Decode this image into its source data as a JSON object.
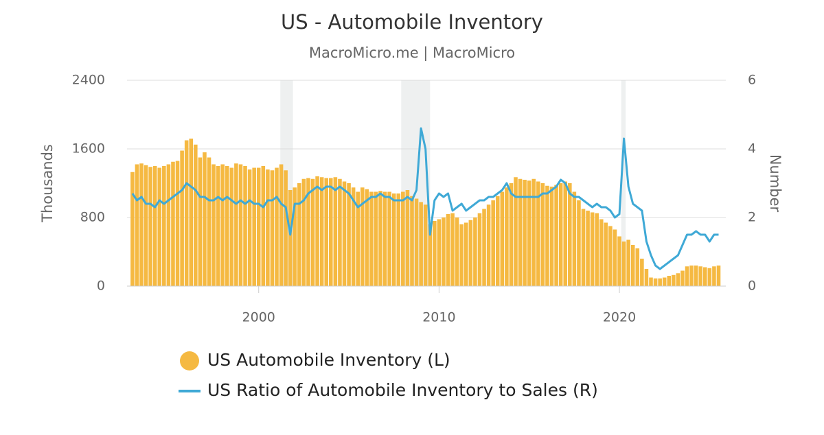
{
  "chart_data": {
    "type": "bar-line",
    "title": "US - Automobile Inventory",
    "subtitle": "MacroMicro.me | MacroMicro",
    "y_label": "Thousands",
    "y2_label": "Number",
    "xlim": [
      1992.7,
      2025.9
    ],
    "xticks": [
      2000,
      2010,
      2020
    ],
    "ylim": [
      0,
      2400
    ],
    "yticks": [
      0,
      800,
      1600,
      2400
    ],
    "y2lim": [
      0,
      6
    ],
    "y2ticks": [
      0,
      2,
      4,
      6
    ],
    "grid": true,
    "recessions": [
      [
        2001.2,
        2001.9
      ],
      [
        2007.9,
        2009.5
      ],
      [
        2020.1,
        2020.35
      ]
    ],
    "x": [
      1993,
      1993.25,
      1993.5,
      1993.75,
      1994,
      1994.25,
      1994.5,
      1994.75,
      1995,
      1995.25,
      1995.5,
      1995.75,
      1996,
      1996.25,
      1996.5,
      1996.75,
      1997,
      1997.25,
      1997.5,
      1997.75,
      1998,
      1998.25,
      1998.5,
      1998.75,
      1999,
      1999.25,
      1999.5,
      1999.75,
      2000,
      2000.25,
      2000.5,
      2000.75,
      2001,
      2001.25,
      2001.5,
      2001.75,
      2002,
      2002.25,
      2002.5,
      2002.75,
      2003,
      2003.25,
      2003.5,
      2003.75,
      2004,
      2004.25,
      2004.5,
      2004.75,
      2005,
      2005.25,
      2005.5,
      2005.75,
      2006,
      2006.25,
      2006.5,
      2006.75,
      2007,
      2007.25,
      2007.5,
      2007.75,
      2008,
      2008.25,
      2008.5,
      2008.75,
      2009,
      2009.25,
      2009.5,
      2009.75,
      2010,
      2010.25,
      2010.5,
      2010.75,
      2011,
      2011.25,
      2011.5,
      2011.75,
      2012,
      2012.25,
      2012.5,
      2012.75,
      2013,
      2013.25,
      2013.5,
      2013.75,
      2014,
      2014.25,
      2014.5,
      2014.75,
      2015,
      2015.25,
      2015.5,
      2015.75,
      2016,
      2016.25,
      2016.5,
      2016.75,
      2017,
      2017.25,
      2017.5,
      2017.75,
      2018,
      2018.25,
      2018.5,
      2018.75,
      2019,
      2019.25,
      2019.5,
      2019.75,
      2020,
      2020.25,
      2020.5,
      2020.75,
      2021,
      2021.25,
      2021.5,
      2021.75,
      2022,
      2022.25,
      2022.5,
      2022.75,
      2023,
      2023.25,
      2023.5,
      2023.75,
      2024,
      2024.25,
      2024.5,
      2024.75,
      2025,
      2025.25,
      2025.5
    ],
    "series": [
      {
        "name": "US Automobile Inventory (L)",
        "color": "#f5b942",
        "kind": "bar",
        "axis": "y",
        "values": [
          1330,
          1420,
          1430,
          1410,
          1390,
          1400,
          1380,
          1400,
          1420,
          1450,
          1460,
          1580,
          1700,
          1720,
          1650,
          1500,
          1560,
          1500,
          1420,
          1400,
          1420,
          1400,
          1380,
          1430,
          1420,
          1400,
          1360,
          1380,
          1380,
          1400,
          1360,
          1350,
          1380,
          1420,
          1350,
          1120,
          1150,
          1200,
          1250,
          1260,
          1250,
          1280,
          1270,
          1260,
          1260,
          1270,
          1250,
          1220,
          1200,
          1150,
          1100,
          1150,
          1130,
          1100,
          1100,
          1110,
          1100,
          1100,
          1080,
          1080,
          1100,
          1120,
          1050,
          1020,
          980,
          950,
          720,
          760,
          780,
          800,
          840,
          850,
          800,
          720,
          740,
          770,
          800,
          850,
          900,
          950,
          1000,
          1050,
          1100,
          1150,
          1200,
          1270,
          1250,
          1240,
          1230,
          1250,
          1220,
          1200,
          1170,
          1160,
          1180,
          1200,
          1220,
          1200,
          1100,
          1000,
          900,
          880,
          860,
          850,
          780,
          740,
          700,
          660,
          580,
          520,
          540,
          480,
          440,
          320,
          200,
          100,
          90,
          90,
          100,
          120,
          130,
          150,
          180,
          230,
          240,
          240,
          230,
          220,
          210,
          230,
          240
        ]
      },
      {
        "name": "US Ratio of Automobile Inventory to Sales (R)",
        "color": "#3fa9d6",
        "kind": "line",
        "axis": "y2",
        "values": [
          2.7,
          2.5,
          2.6,
          2.4,
          2.4,
          2.3,
          2.5,
          2.4,
          2.5,
          2.6,
          2.7,
          2.8,
          3.0,
          2.9,
          2.8,
          2.6,
          2.6,
          2.5,
          2.5,
          2.6,
          2.5,
          2.6,
          2.5,
          2.4,
          2.5,
          2.4,
          2.5,
          2.4,
          2.4,
          2.3,
          2.5,
          2.5,
          2.6,
          2.4,
          2.3,
          1.5,
          2.4,
          2.4,
          2.5,
          2.7,
          2.8,
          2.9,
          2.8,
          2.9,
          2.9,
          2.8,
          2.9,
          2.8,
          2.7,
          2.5,
          2.3,
          2.4,
          2.5,
          2.6,
          2.6,
          2.7,
          2.6,
          2.6,
          2.5,
          2.5,
          2.5,
          2.6,
          2.5,
          2.8,
          4.6,
          4.0,
          1.5,
          2.5,
          2.7,
          2.6,
          2.7,
          2.2,
          2.3,
          2.4,
          2.2,
          2.3,
          2.4,
          2.5,
          2.5,
          2.6,
          2.6,
          2.7,
          2.8,
          3.0,
          2.7,
          2.6,
          2.6,
          2.6,
          2.6,
          2.6,
          2.6,
          2.7,
          2.7,
          2.8,
          2.9,
          3.1,
          3.0,
          2.7,
          2.6,
          2.6,
          2.5,
          2.4,
          2.3,
          2.4,
          2.3,
          2.3,
          2.2,
          2.0,
          2.1,
          4.3,
          2.9,
          2.4,
          2.3,
          2.2,
          1.3,
          0.9,
          0.6,
          0.5,
          0.6,
          0.7,
          0.8,
          0.9,
          1.2,
          1.5,
          1.5,
          1.6,
          1.5,
          1.5,
          1.3,
          1.5,
          1.5
        ]
      }
    ]
  }
}
